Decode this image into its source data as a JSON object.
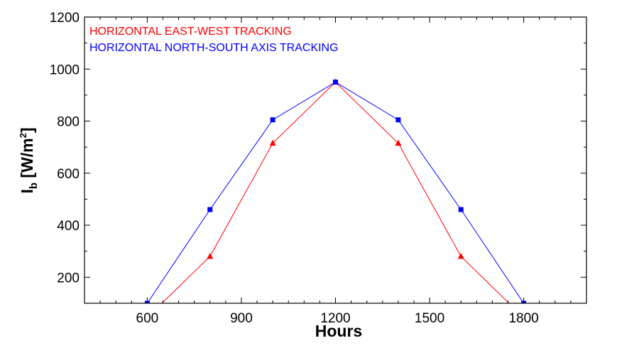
{
  "chart_data": {
    "type": "line",
    "title": "",
    "xlabel": "Hours",
    "ylabel_main": "I",
    "ylabel_sub": "b",
    "ylabel_unit": "[W/m",
    "ylabel_sup": "2",
    "ylabel_close": "]",
    "xlim": [
      400,
      2000
    ],
    "ylim": [
      100,
      1200
    ],
    "xticks": [
      600,
      900,
      1200,
      1500,
      1800
    ],
    "yticks": [
      200,
      400,
      600,
      800,
      1000,
      1200
    ],
    "grid": false,
    "legend_position": "top-left",
    "series": [
      {
        "name": "HORIZONTAL EAST-WEST TRACKING",
        "color": "#ff0000",
        "marker": "triangle",
        "x": [
          600,
          800,
          1000,
          1200,
          1400,
          1600,
          1800
        ],
        "y": [
          45,
          280,
          715,
          950,
          715,
          280,
          45
        ]
      },
      {
        "name": "HORIZONTAL NORTH-SOUTH AXIS TRACKING",
        "color": "#0000ff",
        "marker": "square",
        "x": [
          600,
          800,
          1000,
          1200,
          1400,
          1600,
          1800
        ],
        "y": [
          100,
          460,
          805,
          950,
          805,
          460,
          100
        ]
      }
    ]
  }
}
